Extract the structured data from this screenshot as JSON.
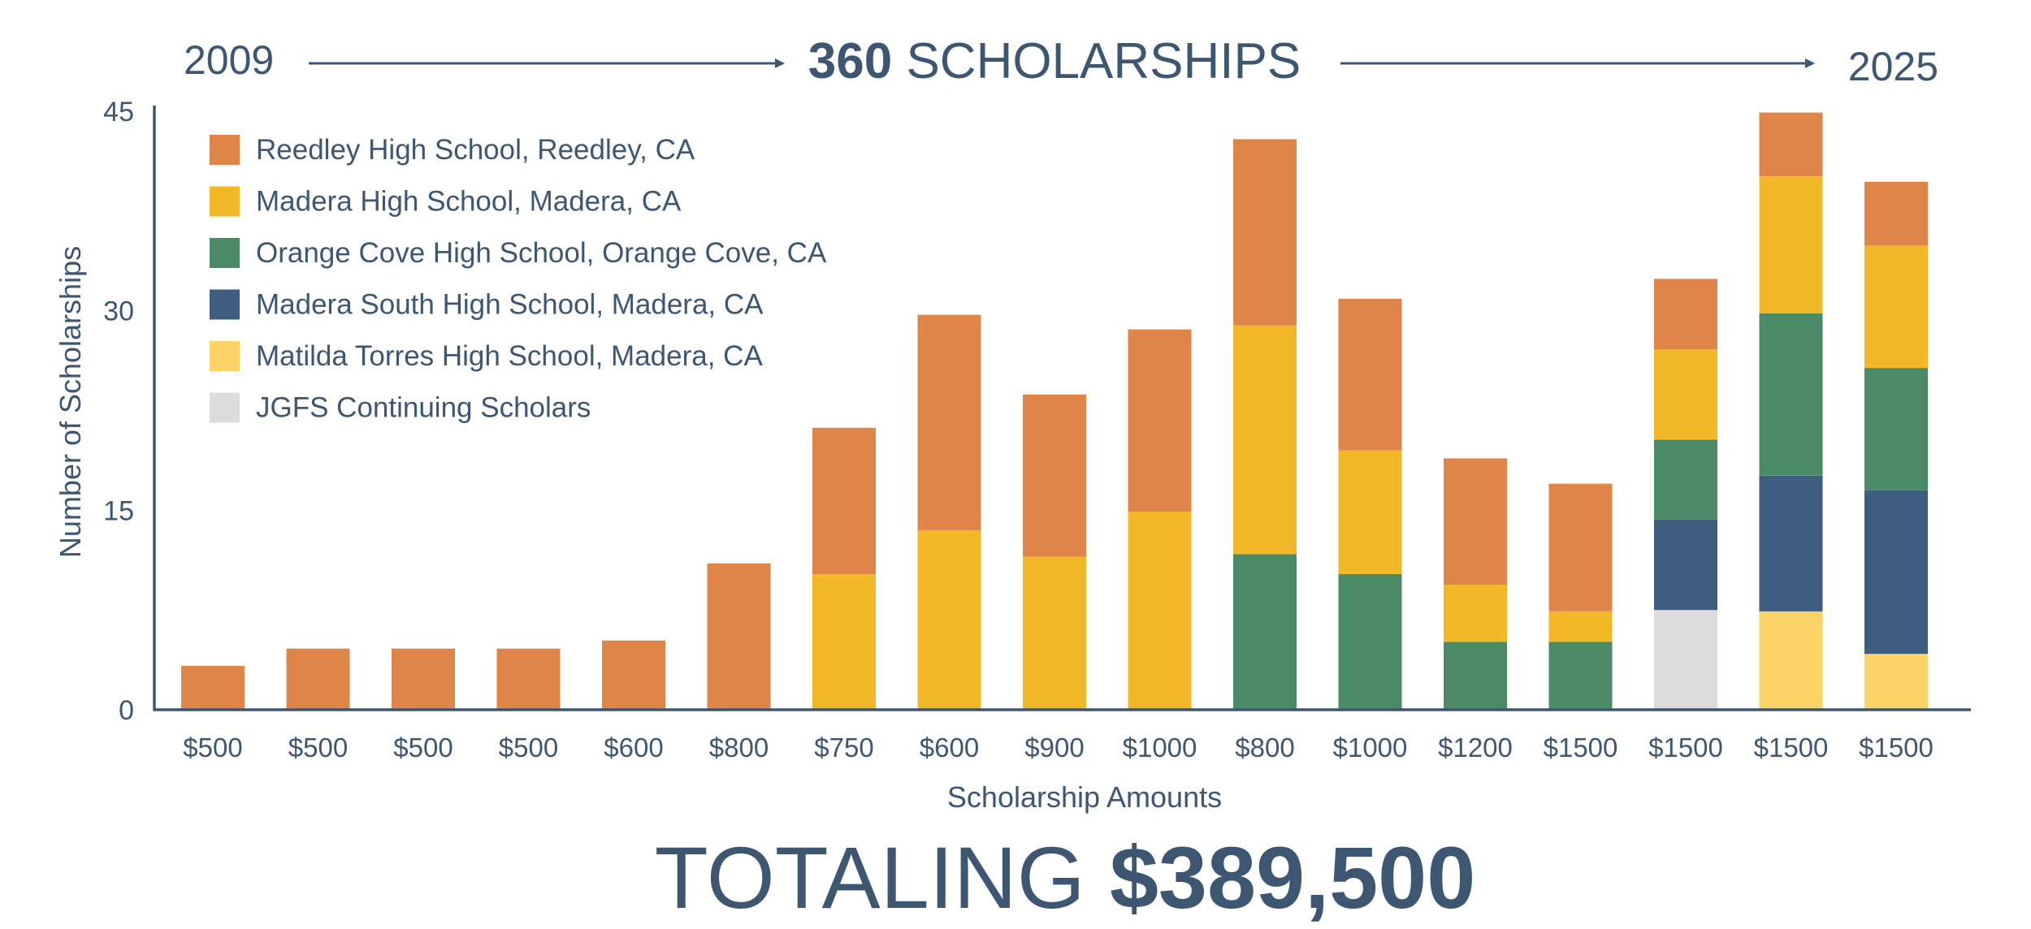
{
  "header": {
    "start_year": "2009",
    "count": "360",
    "count_label": "SCHOLARSHIPS",
    "end_year": "2025"
  },
  "footer": {
    "total_label": "TOTALING",
    "total_value": "$389,500"
  },
  "colors": {
    "text": "#3d5773",
    "axis": "#3d5773"
  },
  "chart_data": {
    "type": "bar",
    "stacked": true,
    "xlabel": "Scholarship Amounts",
    "ylabel": "Number of Scholarships",
    "ylim": [
      0,
      45
    ],
    "yticks": [
      0,
      15,
      30,
      45
    ],
    "grid": false,
    "legend_position": "top-left",
    "categories": [
      "$500",
      "$500",
      "$500",
      "$500",
      "$600",
      "$800",
      "$750",
      "$600",
      "$900",
      "$1000",
      "$800",
      "$1000",
      "$1200",
      "$1500",
      "$1500",
      "$1500",
      "$1500"
    ],
    "series": [
      {
        "name": "JGFS Continuing Scholars",
        "color": "#dcdcdc",
        "values": [
          0,
          0,
          0,
          0,
          0,
          0,
          0,
          0,
          0,
          0,
          0,
          0,
          0,
          0,
          7.5,
          0,
          0
        ]
      },
      {
        "name": "Matilda Torres High School, Madera, CA",
        "color": "#fdd266",
        "values": [
          0,
          0,
          0,
          0,
          0,
          0,
          0,
          0,
          0,
          0,
          0,
          0,
          0,
          0,
          0,
          7.4,
          4.2
        ]
      },
      {
        "name": "Madera South High School, Madera, CA",
        "color": "#3f5d7e",
        "values": [
          0,
          0,
          0,
          0,
          0,
          0,
          0,
          0,
          0,
          0,
          0,
          0,
          0,
          0,
          6.8,
          10.2,
          12.3
        ]
      },
      {
        "name": "Orange Cove High School, Orange Cove, CA",
        "color": "#4a8a64",
        "values": [
          0,
          0,
          0,
          0,
          0,
          0,
          0,
          0,
          0,
          0,
          11.7,
          10.2,
          5.1,
          5.1,
          6.0,
          12.2,
          9.2
        ]
      },
      {
        "name": "Madera High School, Madera, CA",
        "color": "#f2b827",
        "values": [
          0,
          0,
          0,
          0,
          0,
          0,
          10.2,
          13.5,
          11.5,
          14.9,
          17.2,
          9.3,
          4.3,
          2.3,
          6.8,
          10.3,
          9.2
        ]
      },
      {
        "name": "Reedley High School, Reedley, CA",
        "color": "#e0854a",
        "values": [
          3.3,
          4.6,
          4.6,
          4.6,
          5.2,
          11.0,
          11.0,
          16.2,
          12.2,
          13.7,
          14.0,
          11.4,
          9.5,
          9.6,
          5.3,
          4.8,
          4.8
        ]
      }
    ],
    "legend_order": [
      "Reedley High School, Reedley, CA",
      "Madera High School, Madera, CA",
      "Orange Cove High School, Orange Cove, CA",
      "Madera South High School, Madera, CA",
      "Matilda Torres High School, Madera, CA",
      "JGFS Continuing Scholars"
    ]
  }
}
